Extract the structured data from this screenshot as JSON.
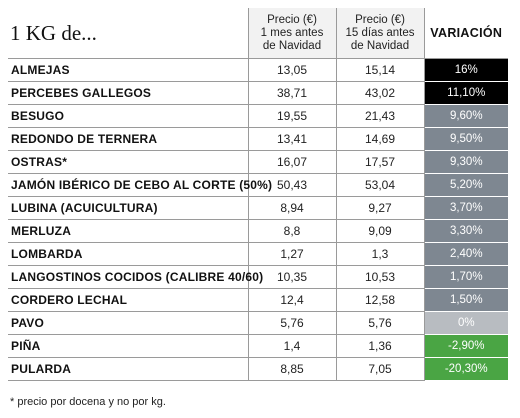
{
  "title": "1 KG de...",
  "headers": {
    "price1": "Precio (€) 1 mes antes de Navidad",
    "price1_lines": [
      "Precio (€)",
      "1 mes antes",
      "de Navidad"
    ],
    "price2_lines": [
      "Precio (€)",
      "15 días antes",
      "de Navidad"
    ],
    "variation": "VARIACIÓN"
  },
  "rows": [
    {
      "name": "ALMEJAS",
      "p1": "13,05",
      "p2": "15,14",
      "var": "16%",
      "color": "#000000"
    },
    {
      "name": "PERCEBES GALLEGOS",
      "p1": "38,71",
      "p2": "43,02",
      "var": "11,10%",
      "color": "#000000"
    },
    {
      "name": "BESUGO",
      "p1": "19,55",
      "p2": "21,43",
      "var": "9,60%",
      "color": "#7e8791"
    },
    {
      "name": "REDONDO DE TERNERA",
      "p1": "13,41",
      "p2": "14,69",
      "var": "9,50%",
      "color": "#7e8791"
    },
    {
      "name": "OSTRAS*",
      "p1": "16,07",
      "p2": "17,57",
      "var": "9,30%",
      "color": "#7e8791"
    },
    {
      "name": "JAMÓN IBÉRICO DE CEBO AL CORTE (50%)",
      "p1": "50,43",
      "p2": "53,04",
      "var": "5,20%",
      "color": "#7e8791"
    },
    {
      "name": "LUBINA (ACUICULTURA)",
      "p1": "8,94",
      "p2": "9,27",
      "var": "3,70%",
      "color": "#7e8791"
    },
    {
      "name": "MERLUZA",
      "p1": "8,8",
      "p2": "9,09",
      "var": "3,30%",
      "color": "#7e8791"
    },
    {
      "name": "LOMBARDA",
      "p1": "1,27",
      "p2": "1,3",
      "var": "2,40%",
      "color": "#7e8791"
    },
    {
      "name": "LANGOSTINOS COCIDOS (CALIBRE 40/60)",
      "p1": "10,35",
      "p2": "10,53",
      "var": "1,70%",
      "color": "#7e8791"
    },
    {
      "name": "CORDERO LECHAL",
      "p1": "12,4",
      "p2": "12,58",
      "var": "1,50%",
      "color": "#7e8791"
    },
    {
      "name": "PAVO",
      "p1": "5,76",
      "p2": "5,76",
      "var": "0%",
      "color": "#b8bcc1"
    },
    {
      "name": "PIÑA",
      "p1": "1,4",
      "p2": "1,36",
      "var": "-2,90%",
      "color": "#4aa544"
    },
    {
      "name": "PULARDA",
      "p1": "8,85",
      "p2": "7,05",
      "var": "-20,30%",
      "color": "#4aa544"
    }
  ],
  "footnote": "* precio por docena y no por kg."
}
